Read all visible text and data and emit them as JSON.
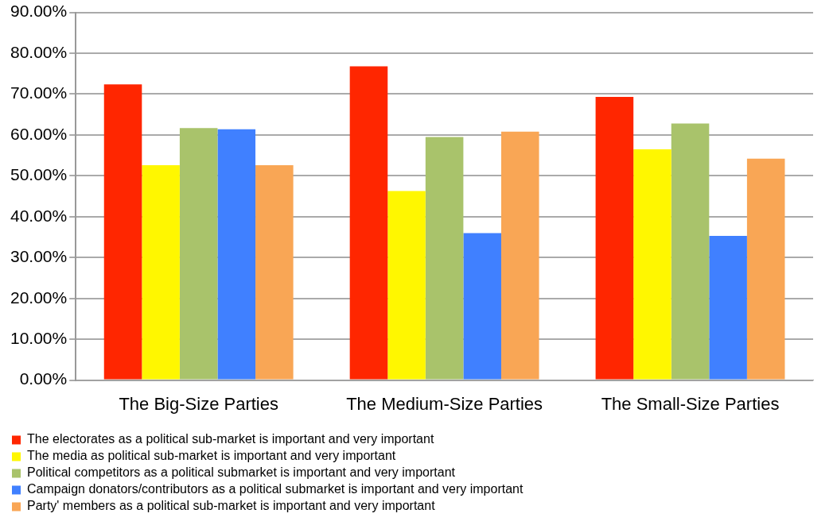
{
  "chart_data": {
    "type": "bar",
    "categories": [
      "The Big-Size Parties",
      "The Medium-Size Parties",
      "The Small-Size Parties"
    ],
    "series": [
      {
        "name": "The electorates as a political sub-market is important and very important",
        "color": "#ff2600",
        "values": [
          72.4,
          76.8,
          69.3
        ]
      },
      {
        "name": "The media as political sub-market is important and very important",
        "color": "#fff700",
        "values": [
          52.6,
          46.3,
          56.5
        ]
      },
      {
        "name": "Political competitors as a political submarket is important and very important",
        "color": "#a9c36b",
        "values": [
          61.7,
          59.5,
          62.8
        ]
      },
      {
        "name": "Campaign donators/contributors as a political submarket is important and very important",
        "color": "#4080ff",
        "values": [
          61.4,
          36.0,
          35.3
        ]
      },
      {
        "name": "Party' members as a political sub-market is important and very important",
        "color": "#f9a655",
        "values": [
          52.6,
          60.8,
          54.2
        ]
      }
    ],
    "ylim": [
      0,
      90
    ],
    "yticks": [
      {
        "value": 0,
        "label": "0.00%"
      },
      {
        "value": 10,
        "label": "10.00%"
      },
      {
        "value": 20,
        "label": "20.00%"
      },
      {
        "value": 30,
        "label": "30.00%"
      },
      {
        "value": 40,
        "label": "40.00%"
      },
      {
        "value": 50,
        "label": "50.00%"
      },
      {
        "value": 60,
        "label": "60.00%"
      },
      {
        "value": 70,
        "label": "70.00%"
      },
      {
        "value": 80,
        "label": "80.00%"
      },
      {
        "value": 90,
        "label": "90.00%"
      }
    ],
    "grid": "y",
    "legend": "bottom"
  }
}
